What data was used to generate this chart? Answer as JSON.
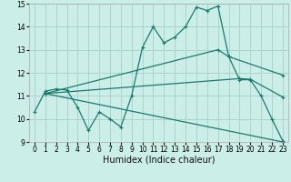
{
  "xlabel": "Humidex (Indice chaleur)",
  "bg_color": "#cceee8",
  "grid_color": "#aad4ce",
  "line_color": "#1a7a6e",
  "xlim": [
    -0.5,
    23.5
  ],
  "ylim": [
    9,
    15
  ],
  "xticks": [
    0,
    1,
    2,
    3,
    4,
    5,
    6,
    7,
    8,
    9,
    10,
    11,
    12,
    13,
    14,
    15,
    16,
    17,
    18,
    19,
    20,
    21,
    22,
    23
  ],
  "yticks": [
    9,
    10,
    11,
    12,
    13,
    14,
    15
  ],
  "line1_x": [
    0,
    1,
    2,
    3,
    4,
    5,
    6,
    7,
    8,
    9,
    10,
    11,
    12,
    13,
    14,
    15,
    16,
    17,
    18,
    19,
    20,
    21,
    22,
    23
  ],
  "line1_y": [
    10.3,
    11.2,
    11.3,
    11.25,
    10.5,
    9.5,
    10.3,
    10.0,
    9.65,
    11.0,
    13.1,
    14.0,
    13.3,
    13.55,
    14.0,
    14.85,
    14.7,
    14.9,
    12.7,
    11.7,
    11.7,
    11.0,
    10.0,
    9.05
  ],
  "line2_x": [
    1,
    17,
    18,
    23
  ],
  "line2_y": [
    11.1,
    13.0,
    12.7,
    11.9
  ],
  "line3_x": [
    1,
    19,
    20,
    23
  ],
  "line3_y": [
    11.1,
    11.75,
    11.72,
    10.95
  ],
  "line4_x": [
    1,
    23
  ],
  "line4_y": [
    11.1,
    9.0
  ],
  "xlabel_fontsize": 7,
  "tick_fontsize": 5.5
}
